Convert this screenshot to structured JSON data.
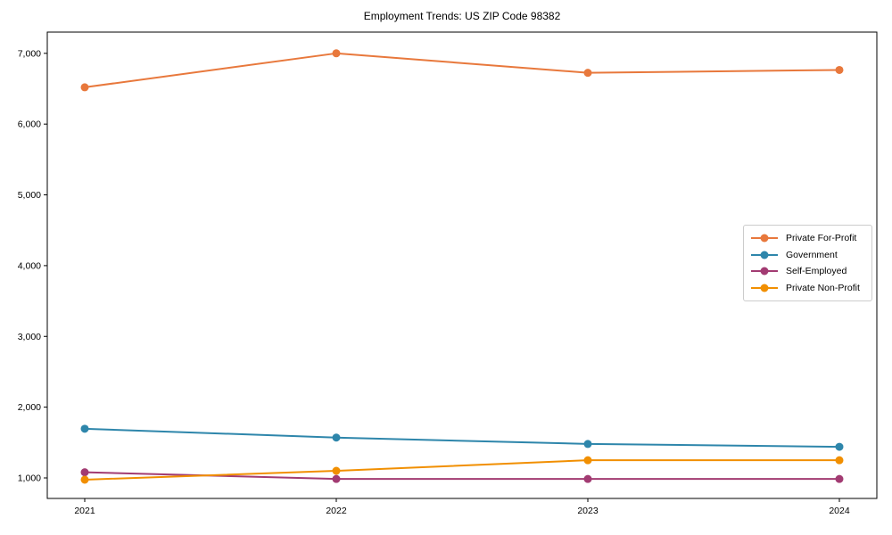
{
  "title": "Employment Trends: US ZIP Code 98382",
  "chart_data": {
    "type": "line",
    "title": "Employment Trends: US ZIP Code 98382",
    "categories": [
      "2021",
      "2022",
      "2023",
      "2024"
    ],
    "series": [
      {
        "name": "Private For-Profit",
        "color": "#E8783C",
        "values": [
          6520,
          7000,
          6725,
          6765
        ]
      },
      {
        "name": "Government",
        "color": "#2E86AB",
        "values": [
          1695,
          1570,
          1480,
          1440
        ]
      },
      {
        "name": "Self-Employed",
        "color": "#A23B72",
        "values": [
          1080,
          985,
          985,
          985
        ]
      },
      {
        "name": "Private Non-Profit",
        "color": "#F18F01",
        "values": [
          975,
          1100,
          1250,
          1250
        ]
      }
    ],
    "xlabel": "",
    "ylabel": "",
    "ylim": [
      710,
      7300
    ],
    "yticks": [
      1000,
      2000,
      3000,
      4000,
      5000,
      6000,
      7000
    ],
    "ytick_labels": [
      "1,000",
      "2,000",
      "3,000",
      "4,000",
      "5,000",
      "6,000",
      "7,000"
    ],
    "grid": false,
    "marker": "circle",
    "legend_position": "center-right",
    "frame_color": "#000000"
  }
}
